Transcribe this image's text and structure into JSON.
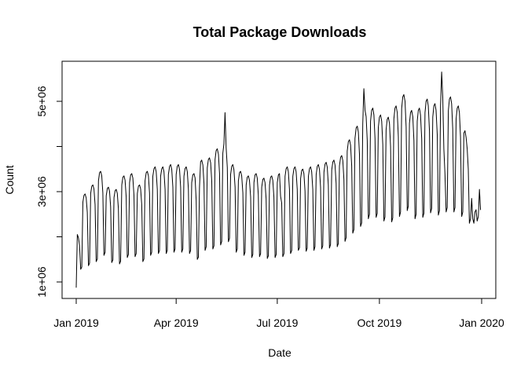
{
  "figure": {
    "background": "#ffffff",
    "foreground": "#000000"
  },
  "chart_data": {
    "type": "line",
    "title": "Total Package Downloads",
    "xlabel": "Date",
    "ylabel": "Count",
    "legend": "none",
    "grid": false,
    "line_color": "#000000",
    "x_axis": {
      "start_date": "2019-01-01",
      "end_date": "2019-12-31",
      "frequency": "daily",
      "tick_labels": [
        "Jan 2019",
        "Apr 2019",
        "Jul 2019",
        "Oct 2019",
        "Jan 2020"
      ],
      "tick_day_offsets": [
        0,
        90,
        181,
        273,
        365
      ]
    },
    "y_axis": {
      "tick_values": [
        1000000,
        2000000,
        3000000,
        4000000,
        5000000
      ],
      "tick_labels": [
        "1e+06",
        "",
        "3e+06",
        "",
        "5e+06"
      ],
      "range": [
        700000,
        5900000
      ]
    },
    "values": [
      880000,
      2050000,
      1980000,
      1820000,
      1280000,
      1330000,
      2770000,
      2920000,
      2950000,
      2860000,
      2540000,
      1360000,
      1420000,
      2960000,
      3120000,
      3150000,
      3060000,
      2710000,
      1450000,
      1510000,
      3240000,
      3420000,
      3450000,
      3350000,
      2970000,
      1590000,
      1660000,
      2910000,
      3070000,
      3100000,
      3010000,
      2670000,
      1430000,
      1490000,
      2870000,
      3020000,
      3050000,
      2960000,
      2620000,
      1400000,
      1460000,
      3150000,
      3320000,
      3350000,
      3250000,
      2880000,
      1540000,
      1610000,
      3200000,
      3370000,
      3400000,
      3300000,
      2920000,
      1560000,
      1630000,
      2960000,
      3120000,
      3150000,
      3060000,
      2710000,
      1450000,
      1510000,
      3240000,
      3420000,
      3450000,
      3350000,
      2970000,
      1590000,
      1660000,
      3340000,
      3510000,
      3550000,
      3440000,
      3050000,
      1630000,
      1700000,
      3340000,
      3510000,
      3550000,
      3440000,
      3050000,
      1630000,
      1700000,
      3380000,
      3560000,
      3600000,
      3490000,
      3100000,
      1660000,
      1730000,
      3380000,
      3560000,
      3600000,
      3490000,
      3100000,
      1660000,
      1730000,
      3340000,
      3510000,
      3550000,
      3440000,
      3050000,
      1630000,
      1700000,
      3200000,
      3370000,
      3400000,
      3300000,
      2800000,
      1500000,
      1550000,
      3100000,
      3660000,
      3700000,
      3590000,
      3180000,
      1700000,
      1780000,
      3530000,
      3710000,
      3750000,
      3640000,
      3230000,
      1730000,
      1800000,
      3710000,
      3910000,
      3950000,
      3830000,
      3400000,
      1820000,
      1900000,
      3850000,
      4060000,
      4750000,
      3980000,
      3530000,
      1890000,
      1970000,
      3380000,
      3560000,
      3600000,
      3490000,
      3100000,
      1660000,
      1730000,
      3240000,
      3420000,
      3450000,
      3350000,
      2970000,
      1590000,
      1660000,
      3150000,
      3320000,
      3350000,
      3250000,
      2880000,
      1540000,
      1610000,
      3200000,
      3370000,
      3400000,
      3300000,
      2920000,
      1560000,
      1630000,
      3100000,
      3270000,
      3300000,
      3200000,
      2840000,
      1520000,
      1580000,
      3150000,
      3320000,
      3350000,
      3250000,
      2880000,
      1540000,
      1610000,
      3200000,
      3370000,
      3400000,
      2900000,
      2750000,
      1560000,
      1630000,
      3340000,
      3510000,
      3550000,
      3440000,
      3050000,
      1630000,
      1700000,
      3340000,
      3510000,
      3550000,
      3440000,
      3050000,
      1700000,
      1760000,
      3290000,
      3470000,
      3500000,
      3400000,
      3010000,
      1680000,
      1750000,
      3340000,
      3510000,
      3550000,
      3440000,
      3050000,
      1700000,
      1780000,
      3380000,
      3560000,
      3600000,
      3490000,
      3100000,
      1730000,
      1800000,
      3430000,
      3610000,
      3650000,
      3540000,
      3140000,
      1750000,
      1830000,
      3480000,
      3660000,
      3700000,
      3590000,
      3180000,
      1780000,
      1850000,
      3570000,
      3760000,
      3800000,
      3690000,
      3270000,
      1900000,
      1980000,
      3900000,
      4110000,
      4150000,
      4030000,
      3570000,
      2080000,
      2160000,
      4180000,
      4410000,
      4450000,
      4320000,
      3830000,
      2230000,
      2310000,
      4510000,
      5280000,
      4800000,
      4660000,
      4130000,
      2400000,
      2500000,
      4560000,
      4800000,
      4850000,
      4700000,
      4170000,
      2430000,
      2520000,
      4420000,
      4650000,
      4700000,
      4560000,
      4040000,
      2350000,
      2440000,
      4370000,
      4600000,
      4650000,
      4510000,
      4000000,
      2330000,
      2420000,
      4610000,
      4850000,
      4900000,
      4750000,
      4210000,
      2450000,
      2550000,
      4840000,
      5100000,
      5150000,
      5000000,
      4430000,
      2580000,
      2680000,
      4510000,
      4750000,
      4800000,
      4660000,
      4130000,
      2400000,
      2500000,
      4560000,
      4800000,
      4850000,
      4700000,
      4170000,
      2430000,
      2520000,
      4750000,
      5000000,
      5050000,
      4900000,
      4340000,
      2530000,
      2630000,
      4650000,
      4900000,
      4950000,
      4800000,
      4260000,
      2480000,
      2580000,
      4900000,
      5650000,
      5100000,
      3950000,
      3400000,
      2550000,
      2650000,
      4790000,
      5050000,
      5100000,
      4950000,
      4390000,
      2550000,
      2650000,
      4610000,
      4850000,
      4900000,
      4750000,
      4210000,
      2450000,
      2550000,
      4300000,
      4350000,
      4200000,
      3950000,
      3500000,
      2300000,
      2400000,
      2850000,
      2400000,
      2300000,
      2550000,
      2600000,
      2350000,
      2450000,
      3050000,
      2600000
    ]
  }
}
